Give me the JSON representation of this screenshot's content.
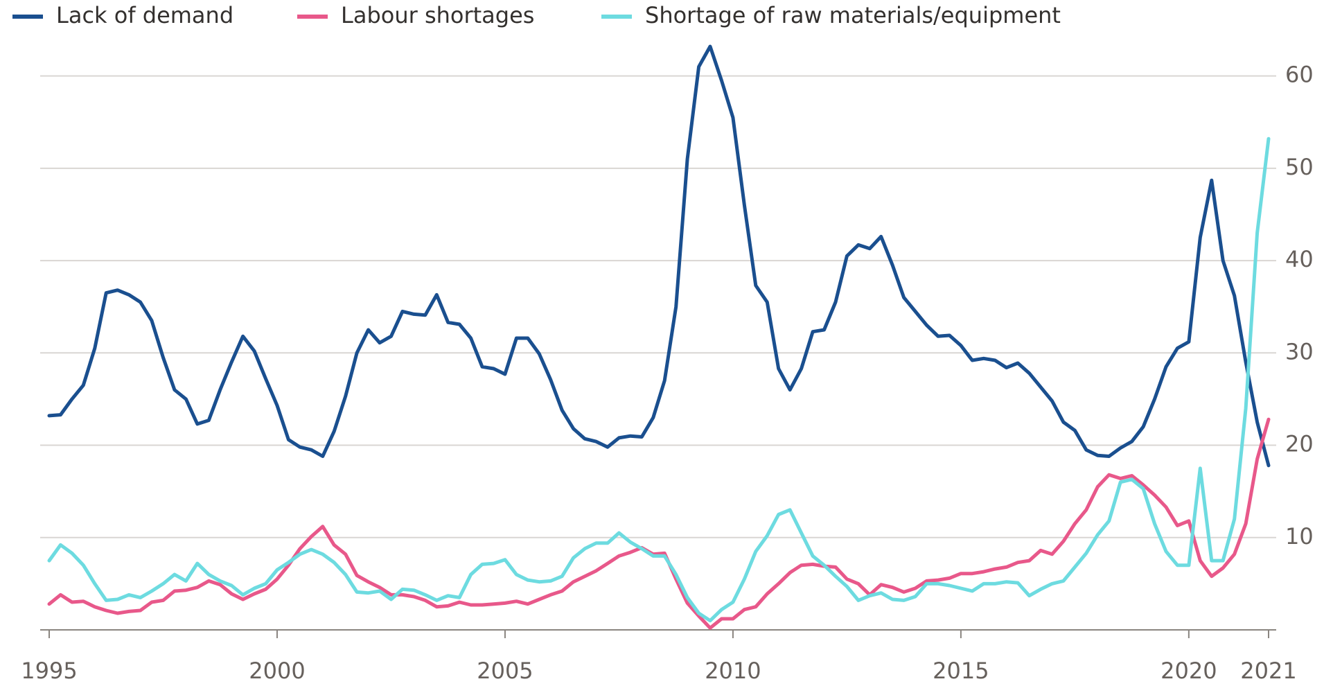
{
  "chart_data": {
    "type": "line",
    "x": [
      1995,
      1995.25,
      1995.5,
      1995.75,
      1996,
      1996.25,
      1996.5,
      1996.75,
      1997,
      1997.25,
      1997.5,
      1997.75,
      1998,
      1998.25,
      1998.5,
      1998.75,
      1999,
      1999.25,
      1999.5,
      1999.75,
      2000,
      2000.25,
      2000.5,
      2000.75,
      2001,
      2001.25,
      2001.5,
      2001.75,
      2002,
      2002.25,
      2002.5,
      2002.75,
      2003,
      2003.25,
      2003.5,
      2003.75,
      2004,
      2004.25,
      2004.5,
      2004.75,
      2005,
      2005.25,
      2005.5,
      2005.75,
      2006,
      2006.25,
      2006.5,
      2006.75,
      2007,
      2007.25,
      2007.5,
      2007.75,
      2008,
      2008.25,
      2008.5,
      2008.75,
      2009,
      2009.25,
      2009.5,
      2009.75,
      2010,
      2010.25,
      2010.5,
      2010.75,
      2011,
      2011.25,
      2011.5,
      2011.75,
      2012,
      2012.25,
      2012.5,
      2012.75,
      2013,
      2013.25,
      2013.5,
      2013.75,
      2014,
      2014.25,
      2014.5,
      2014.75,
      2015,
      2015.25,
      2015.5,
      2015.75,
      2016,
      2016.25,
      2016.5,
      2016.75,
      2017,
      2017.25,
      2017.5,
      2017.75,
      2018,
      2018.25,
      2018.5,
      2018.75,
      2019,
      2019.25,
      2019.5,
      2019.75,
      2020,
      2020.25,
      2020.5,
      2020.75,
      2021,
      2021.25,
      2021.5,
      2021.75
    ],
    "series": [
      {
        "name": "Lack of demand",
        "color": "#1a4f8f",
        "values": [
          23.2,
          23.3,
          25,
          26.5,
          30.5,
          36.5,
          36.8,
          36.3,
          35.5,
          33.5,
          29.5,
          26,
          25,
          22.3,
          22.7,
          26,
          29,
          31.8,
          30.2,
          27.2,
          24.3,
          20.6,
          19.8,
          19.5,
          18.8,
          21.5,
          25.3,
          30,
          32.5,
          31.1,
          31.8,
          34.5,
          34.2,
          34.1,
          36.3,
          33.3,
          33.1,
          31.6,
          28.5,
          28.3,
          27.7,
          31.6,
          31.6,
          29.9,
          27.1,
          23.8,
          21.8,
          20.7,
          20.4,
          19.8,
          20.8,
          21,
          20.9,
          23,
          27,
          35,
          51,
          61,
          63.2,
          59.5,
          55.5,
          46,
          37.3,
          35.5,
          28.3,
          26,
          28.3,
          32.3,
          32.5,
          35.5,
          40.5,
          41.7,
          41.3,
          42.6,
          39.5,
          36,
          34.5,
          33,
          31.8,
          31.9,
          30.8,
          29.2,
          29.4,
          29.2,
          28.4,
          28.9,
          27.8,
          26.3,
          24.8,
          22.5,
          21.6,
          19.5,
          18.9,
          18.8,
          19.7,
          20.4,
          22,
          25,
          28.5,
          30.5,
          31.2,
          42.5,
          48.7,
          40,
          36.2,
          29,
          22.5,
          17.8
        ]
      },
      {
        "name": "Labour shortages",
        "color": "#e8588a",
        "values": [
          2.8,
          3.8,
          3,
          3.1,
          2.5,
          2.1,
          1.8,
          2,
          2.1,
          3,
          3.2,
          4.2,
          4.3,
          4.6,
          5.3,
          4.9,
          3.9,
          3.3,
          3.9,
          4.4,
          5.5,
          7,
          8.8,
          10.1,
          11.2,
          9.2,
          8.2,
          5.9,
          5.2,
          4.6,
          3.8,
          3.8,
          3.6,
          3.2,
          2.5,
          2.6,
          3,
          2.7,
          2.7,
          2.8,
          2.9,
          3.1,
          2.8,
          3.3,
          3.8,
          4.2,
          5.2,
          5.8,
          6.4,
          7.2,
          8,
          8.4,
          8.9,
          8.2,
          8.3,
          5.5,
          2.9,
          1.5,
          0.2,
          1.2,
          1.2,
          2.2,
          2.5,
          3.9,
          5,
          6.2,
          7,
          7.1,
          6.9,
          6.8,
          5.5,
          5,
          3.8,
          4.9,
          4.6,
          4.1,
          4.5,
          5.3,
          5.4,
          5.6,
          6.1,
          6.1,
          6.3,
          6.6,
          6.8,
          7.3,
          7.5,
          8.6,
          8.2,
          9.6,
          11.5,
          13,
          15.5,
          16.8,
          16.4,
          16.7,
          15.7,
          14.6,
          13.3,
          11.3,
          11.8,
          7.5,
          5.8,
          6.7,
          8.2,
          11.5,
          18.5,
          22.8
        ]
      },
      {
        "name": "Shortage of raw materials/equipment",
        "color": "#6ddbe0",
        "values": [
          7.5,
          9.2,
          8.3,
          7,
          5,
          3.2,
          3.3,
          3.8,
          3.5,
          4.2,
          5,
          6,
          5.3,
          7.2,
          6,
          5.3,
          4.8,
          3.8,
          4.5,
          5,
          6.5,
          7.3,
          8.2,
          8.7,
          8.2,
          7.3,
          6,
          4.1,
          4,
          4.2,
          3.3,
          4.4,
          4.3,
          3.8,
          3.2,
          3.7,
          3.5,
          6,
          7.1,
          7.2,
          7.6,
          6,
          5.4,
          5.2,
          5.3,
          5.8,
          7.8,
          8.8,
          9.4,
          9.4,
          10.5,
          9.5,
          8.8,
          8,
          8,
          6,
          3.5,
          1.8,
          1,
          2.2,
          3,
          5.5,
          8.5,
          10.2,
          12.5,
          13,
          10.5,
          8,
          7,
          5.8,
          4.7,
          3.2,
          3.7,
          4,
          3.3,
          3.2,
          3.6,
          5,
          5,
          4.8,
          4.5,
          4.2,
          5,
          5,
          5.2,
          5.1,
          3.7,
          4.4,
          5,
          5.3,
          6.8,
          8.3,
          10.3,
          11.8,
          16,
          16.3,
          15.3,
          11.5,
          8.5,
          7,
          7,
          17.5,
          7.5,
          7.5,
          12,
          24,
          43,
          53.2
        ]
      }
    ],
    "xlim": [
      1995,
      2021.75
    ],
    "xticks": [
      1995,
      2000,
      2005,
      2010,
      2015,
      2020,
      {
        "value": 2021.75,
        "label": "2021"
      }
    ],
    "ylim": [
      0,
      65
    ],
    "yticks": [
      10,
      20,
      30,
      40,
      50,
      60
    ],
    "grid": true,
    "legend": "top"
  }
}
